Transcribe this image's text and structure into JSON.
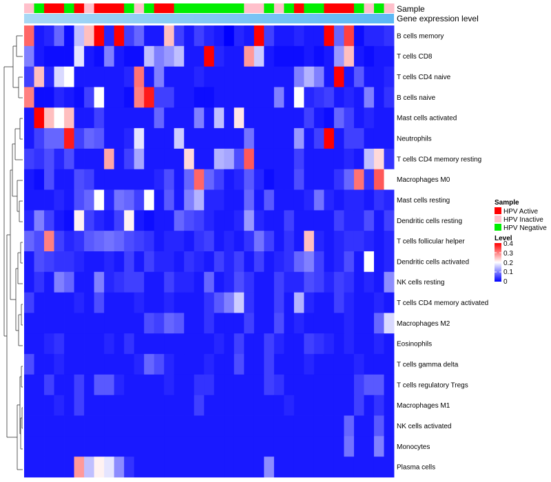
{
  "chart_data": {
    "type": "heatmap",
    "title": "",
    "annotation_labels": [
      "Sample",
      "Gene expression level"
    ],
    "row_labels": [
      "B cells memory",
      "T cells CD8",
      "T cells CD4 naive",
      "B cells naive",
      "Mast cells activated",
      "Neutrophils",
      "T cells CD4 memory resting",
      "Macrophages M0",
      "Mast cells resting",
      "Dendritic cells resting",
      "T cells follicular helper",
      "Dendritic cells activated",
      "NK cells resting",
      "T cells CD4 memory activated",
      "Macrophages M2",
      "Eosinophils",
      "T cells gamma delta",
      "T cells regulatory  Tregs",
      "Macrophages M1",
      "NK cells activated",
      "Monocytes",
      "Plasma cells"
    ],
    "column_groups": [
      "HPV Inactive",
      "HPV Negative",
      "HPV Active",
      "HPV Active",
      "HPV Negative",
      "HPV Active",
      "HPV Inactive",
      "HPV Active",
      "HPV Active",
      "HPV Active",
      "HPV Negative",
      "HPV Inactive",
      "HPV Negative",
      "HPV Active",
      "HPV Active",
      "HPV Negative",
      "HPV Negative",
      "HPV Negative",
      "HPV Negative",
      "HPV Negative",
      "HPV Negative",
      "HPV Negative",
      "HPV Inactive",
      "HPV Inactive",
      "HPV Negative",
      "HPV Inactive",
      "HPV Negative",
      "HPV Active",
      "HPV Negative",
      "HPV Negative",
      "HPV Active",
      "HPV Active",
      "HPV Active",
      "HPV Negative",
      "HPV Inactive",
      "HPV Negative",
      "HPV Inactive"
    ],
    "values": [
      [
        0.32,
        0.02,
        0.03,
        0.08,
        0.01,
        0.15,
        0.25,
        0.4,
        0.03,
        0.4,
        0.05,
        0.08,
        0.02,
        0.02,
        0.25,
        0.05,
        0.02,
        0.05,
        0.03,
        0.02,
        0.0,
        0.03,
        0.02,
        0.4,
        0.05,
        0.02,
        0.02,
        0.03,
        0.02,
        0.02,
        0.4,
        0.08,
        0.35,
        0.01,
        0.03,
        0.03,
        0.04
      ],
      [
        0.1,
        0.02,
        0.01,
        0.01,
        0.01,
        0.18,
        0.02,
        0.01,
        0.1,
        0.02,
        0.01,
        0.01,
        0.15,
        0.1,
        0.12,
        0.15,
        0.02,
        0.02,
        0.4,
        0.03,
        0.02,
        0.02,
        0.28,
        0.16,
        0.02,
        0.01,
        0.01,
        0.01,
        0.02,
        0.01,
        0.02,
        0.12,
        0.25,
        0.02,
        0.01,
        0.02,
        0.02
      ],
      [
        0.05,
        0.25,
        0.03,
        0.17,
        0.2,
        0.02,
        0.02,
        0.02,
        0.02,
        0.02,
        0.03,
        0.31,
        0.02,
        0.1,
        0.02,
        0.02,
        0.02,
        0.03,
        0.02,
        0.02,
        0.02,
        0.02,
        0.02,
        0.02,
        0.02,
        0.02,
        0.02,
        0.1,
        0.14,
        0.1,
        0.02,
        0.4,
        0.02,
        0.07,
        0.02,
        0.02,
        0.03
      ],
      [
        0.3,
        0.01,
        0.01,
        0.03,
        0.02,
        0.01,
        0.05,
        0.2,
        0.02,
        0.02,
        0.01,
        0.3,
        0.38,
        0.05,
        0.05,
        0.02,
        0.02,
        0.01,
        0.01,
        0.02,
        0.02,
        0.02,
        0.02,
        0.02,
        0.02,
        0.1,
        0.02,
        0.2,
        0.03,
        0.04,
        0.05,
        0.02,
        0.03,
        0.02,
        0.1,
        0.02,
        0.04
      ],
      [
        0.02,
        0.4,
        0.25,
        0.2,
        0.25,
        0.02,
        0.02,
        0.05,
        0.02,
        0.02,
        0.02,
        0.02,
        0.02,
        0.08,
        0.02,
        0.02,
        0.02,
        0.1,
        0.02,
        0.15,
        0.02,
        0.22,
        0.02,
        0.02,
        0.02,
        0.02,
        0.02,
        0.02,
        0.05,
        0.02,
        0.01,
        0.08,
        0.05,
        0.02,
        0.03,
        0.02,
        0.02
      ],
      [
        0.02,
        0.05,
        0.08,
        0.08,
        0.38,
        0.05,
        0.08,
        0.07,
        0.02,
        0.02,
        0.03,
        0.18,
        0.02,
        0.02,
        0.02,
        0.16,
        0.02,
        0.02,
        0.02,
        0.02,
        0.02,
        0.02,
        0.09,
        0.02,
        0.02,
        0.02,
        0.02,
        0.12,
        0.02,
        0.05,
        0.4,
        0.02,
        0.05,
        0.05,
        0.02,
        0.02,
        0.02
      ],
      [
        0.05,
        0.04,
        0.06,
        0.03,
        0.06,
        0.02,
        0.02,
        0.02,
        0.27,
        0.02,
        0.05,
        0.13,
        0.02,
        0.02,
        0.02,
        0.02,
        0.23,
        0.02,
        0.02,
        0.14,
        0.13,
        0.06,
        0.33,
        0.02,
        0.02,
        0.02,
        0.02,
        0.05,
        0.02,
        0.02,
        0.02,
        0.02,
        0.03,
        0.02,
        0.15,
        0.23,
        0.04
      ],
      [
        0.02,
        0.01,
        0.06,
        0.02,
        0.02,
        0.06,
        0.05,
        0.02,
        0.02,
        0.02,
        0.02,
        0.02,
        0.02,
        0.03,
        0.06,
        0.02,
        0.08,
        0.32,
        0.08,
        0.05,
        0.02,
        0.03,
        0.07,
        0.03,
        0.01,
        0.02,
        0.02,
        0.06,
        0.02,
        0.02,
        0.02,
        0.04,
        0.08,
        0.31,
        0.04,
        0.33,
        0.2
      ],
      [
        0.02,
        0.02,
        0.02,
        0.03,
        0.02,
        0.06,
        0.08,
        0.2,
        0.03,
        0.09,
        0.08,
        0.05,
        0.2,
        0.02,
        0.07,
        0.02,
        0.1,
        0.14,
        0.03,
        0.03,
        0.02,
        0.02,
        0.08,
        0.02,
        0.07,
        0.02,
        0.02,
        0.02,
        0.03,
        0.09,
        0.03,
        0.02,
        0.03,
        0.03,
        0.02,
        0.04,
        0.03
      ],
      [
        0.03,
        0.1,
        0.05,
        0.02,
        0.01,
        0.21,
        0.05,
        0.03,
        0.02,
        0.05,
        0.21,
        0.02,
        0.01,
        0.02,
        0.02,
        0.08,
        0.06,
        0.05,
        0.03,
        0.02,
        0.02,
        0.03,
        0.12,
        0.03,
        0.02,
        0.02,
        0.05,
        0.02,
        0.02,
        0.02,
        0.02,
        0.05,
        0.03,
        0.03,
        0.06,
        0.02,
        0.05
      ],
      [
        0.08,
        0.06,
        0.3,
        0.05,
        0.03,
        0.04,
        0.07,
        0.08,
        0.09,
        0.08,
        0.06,
        0.05,
        0.04,
        0.02,
        0.03,
        0.03,
        0.02,
        0.04,
        0.05,
        0.02,
        0.03,
        0.02,
        0.04,
        0.09,
        0.05,
        0.02,
        0.04,
        0.02,
        0.25,
        0.03,
        0.02,
        0.03,
        0.04,
        0.04,
        0.03,
        0.02,
        0.03
      ],
      [
        0.02,
        0.06,
        0.05,
        0.04,
        0.04,
        0.03,
        0.02,
        0.02,
        0.03,
        0.02,
        0.05,
        0.02,
        0.05,
        0.03,
        0.03,
        0.02,
        0.04,
        0.03,
        0.02,
        0.05,
        0.03,
        0.05,
        0.02,
        0.05,
        0.02,
        0.03,
        0.04,
        0.08,
        0.1,
        0.05,
        0.02,
        0.03,
        0.06,
        0.02,
        0.2,
        0.02,
        0.03
      ],
      [
        0.02,
        0.04,
        0.02,
        0.1,
        0.08,
        0.02,
        0.02,
        0.1,
        0.03,
        0.04,
        0.05,
        0.05,
        0.02,
        0.02,
        0.05,
        0.03,
        0.03,
        0.02,
        0.08,
        0.02,
        0.03,
        0.06,
        0.04,
        0.02,
        0.02,
        0.05,
        0.03,
        0.03,
        0.06,
        0.05,
        0.03,
        0.05,
        0.04,
        0.02,
        0.03,
        0.02,
        0.11
      ],
      [
        0.05,
        0.02,
        0.02,
        0.02,
        0.02,
        0.03,
        0.02,
        0.06,
        0.02,
        0.02,
        0.02,
        0.03,
        0.02,
        0.02,
        0.03,
        0.02,
        0.02,
        0.02,
        0.04,
        0.07,
        0.1,
        0.16,
        0.04,
        0.02,
        0.02,
        0.05,
        0.02,
        0.14,
        0.03,
        0.02,
        0.02,
        0.05,
        0.03,
        0.02,
        0.02,
        0.03,
        0.02
      ],
      [
        0.02,
        0.02,
        0.02,
        0.02,
        0.02,
        0.02,
        0.02,
        0.02,
        0.02,
        0.02,
        0.02,
        0.02,
        0.06,
        0.05,
        0.08,
        0.07,
        0.02,
        0.02,
        0.04,
        0.02,
        0.02,
        0.02,
        0.05,
        0.02,
        0.02,
        0.06,
        0.02,
        0.03,
        0.02,
        0.02,
        0.02,
        0.02,
        0.03,
        0.02,
        0.02,
        0.08,
        0.17
      ],
      [
        0.02,
        0.02,
        0.03,
        0.04,
        0.02,
        0.02,
        0.02,
        0.02,
        0.03,
        0.02,
        0.04,
        0.02,
        0.02,
        0.02,
        0.02,
        0.02,
        0.02,
        0.02,
        0.02,
        0.03,
        0.02,
        0.05,
        0.02,
        0.02,
        0.05,
        0.03,
        0.02,
        0.02,
        0.05,
        0.04,
        0.03,
        0.02,
        0.03,
        0.02,
        0.02,
        0.03,
        0.02
      ],
      [
        0.06,
        0.02,
        0.02,
        0.03,
        0.02,
        0.02,
        0.02,
        0.02,
        0.02,
        0.02,
        0.02,
        0.03,
        0.08,
        0.06,
        0.03,
        0.02,
        0.02,
        0.02,
        0.03,
        0.02,
        0.02,
        0.06,
        0.02,
        0.02,
        0.05,
        0.02,
        0.02,
        0.02,
        0.03,
        0.02,
        0.02,
        0.02,
        0.02,
        0.03,
        0.02,
        0.02,
        0.02
      ],
      [
        0.02,
        0.02,
        0.05,
        0.02,
        0.02,
        0.05,
        0.02,
        0.07,
        0.07,
        0.03,
        0.02,
        0.02,
        0.02,
        0.02,
        0.03,
        0.02,
        0.02,
        0.04,
        0.04,
        0.02,
        0.02,
        0.02,
        0.02,
        0.02,
        0.05,
        0.04,
        0.02,
        0.02,
        0.02,
        0.02,
        0.02,
        0.02,
        0.02,
        0.05,
        0.07,
        0.07,
        0.02
      ],
      [
        0.02,
        0.02,
        0.02,
        0.03,
        0.02,
        0.05,
        0.02,
        0.02,
        0.02,
        0.02,
        0.02,
        0.02,
        0.02,
        0.02,
        0.02,
        0.02,
        0.02,
        0.05,
        0.02,
        0.02,
        0.02,
        0.02,
        0.02,
        0.02,
        0.02,
        0.02,
        0.03,
        0.02,
        0.02,
        0.02,
        0.02,
        0.02,
        0.02,
        0.05,
        0.02,
        0.04,
        0.02
      ],
      [
        0.02,
        0.02,
        0.02,
        0.02,
        0.02,
        0.02,
        0.02,
        0.02,
        0.02,
        0.02,
        0.02,
        0.02,
        0.02,
        0.02,
        0.02,
        0.02,
        0.02,
        0.02,
        0.02,
        0.02,
        0.02,
        0.02,
        0.02,
        0.02,
        0.02,
        0.02,
        0.02,
        0.02,
        0.02,
        0.02,
        0.02,
        0.02,
        0.08,
        0.02,
        0.02,
        0.07,
        0.02
      ],
      [
        0.02,
        0.02,
        0.02,
        0.02,
        0.02,
        0.02,
        0.02,
        0.02,
        0.02,
        0.02,
        0.02,
        0.02,
        0.02,
        0.02,
        0.02,
        0.02,
        0.02,
        0.02,
        0.02,
        0.02,
        0.02,
        0.02,
        0.02,
        0.02,
        0.02,
        0.02,
        0.02,
        0.02,
        0.02,
        0.02,
        0.02,
        0.02,
        0.09,
        0.02,
        0.02,
        0.1,
        0.02
      ],
      [
        0.02,
        0.02,
        0.02,
        0.02,
        0.02,
        0.28,
        0.15,
        0.21,
        0.18,
        0.11,
        0.04,
        0.02,
        0.02,
        0.02,
        0.02,
        0.02,
        0.02,
        0.02,
        0.02,
        0.02,
        0.02,
        0.02,
        0.02,
        0.02,
        0.11,
        0.02,
        0.02,
        0.02,
        0.02,
        0.02,
        0.02,
        0.02,
        0.02,
        0.02,
        0.02,
        0.02,
        0.02
      ]
    ],
    "color_scale": {
      "min": 0,
      "max": 0.4,
      "stops": [
        {
          "value": 0,
          "color": "#0000ff"
        },
        {
          "value": 0.2,
          "color": "#ffffff"
        },
        {
          "value": 0.4,
          "color": "#ff0000"
        }
      ]
    },
    "sample_colors": {
      "HPV Active": "#ff0000",
      "HPV Inactive": "#ffc0cb",
      "HPV Negative": "#00ee00"
    },
    "expression_bar_colors": [
      "#a8d8f5",
      "#5bb8f5"
    ],
    "legend": {
      "sample_title": "Sample",
      "sample_items": [
        "HPV Active",
        "HPV Inactive",
        "HPV Negative"
      ],
      "level_title": "Level",
      "level_ticks": [
        "0.4",
        "0.3",
        "0.2",
        "0.1",
        "0"
      ]
    }
  }
}
